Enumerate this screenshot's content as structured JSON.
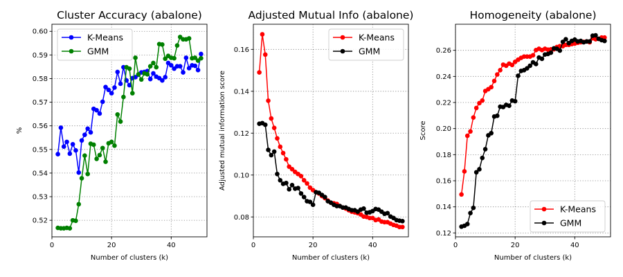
{
  "chart_data": [
    {
      "type": "line",
      "title": "Cluster Accuracy (abalone)",
      "xlabel": "Number of clusters (k)",
      "ylabel": "%",
      "xlim": [
        0,
        52
      ],
      "ylim": [
        0.513,
        0.603
      ],
      "xticks": [
        0,
        20,
        40
      ],
      "yticks": [
        0.52,
        0.53,
        0.54,
        0.55,
        0.56,
        0.57,
        0.58,
        0.59,
        0.6
      ],
      "ytick_labels": [
        "0.52",
        "0.53",
        "0.54",
        "0.55",
        "0.56",
        "0.57",
        "0.58",
        "0.59",
        "0.60"
      ],
      "grid": true,
      "legend_position": "upper-left",
      "x": [
        2,
        3,
        4,
        5,
        6,
        7,
        8,
        9,
        10,
        11,
        12,
        13,
        14,
        15,
        16,
        17,
        18,
        19,
        20,
        21,
        22,
        23,
        24,
        25,
        26,
        27,
        28,
        29,
        30,
        31,
        32,
        33,
        34,
        35,
        36,
        37,
        38,
        39,
        40,
        41,
        42,
        43,
        44,
        45,
        46,
        47,
        48,
        49,
        50
      ],
      "series": [
        {
          "name": "K-Means",
          "color": "#0000ff",
          "values": [
            0.548,
            0.5592,
            0.5512,
            0.5532,
            0.5482,
            0.5522,
            0.5496,
            0.5402,
            0.5538,
            0.5562,
            0.5588,
            0.5572,
            0.5672,
            0.5666,
            0.5652,
            0.5702,
            0.5764,
            0.5752,
            0.5738,
            0.5762,
            0.5828,
            0.5778,
            0.5848,
            0.5792,
            0.5772,
            0.5802,
            0.5806,
            0.5816,
            0.5826,
            0.5828,
            0.5832,
            0.5798,
            0.5822,
            0.5808,
            0.5802,
            0.5792,
            0.5806,
            0.5866,
            0.5856,
            0.5842,
            0.5852,
            0.5852,
            0.5826,
            0.5888,
            0.5844,
            0.5856,
            0.5854,
            0.5836,
            0.5904
          ]
        },
        {
          "name": "GMM",
          "color": "#008000",
          "values": [
            0.5168,
            0.5166,
            0.5166,
            0.5168,
            0.5166,
            0.52,
            0.5198,
            0.5268,
            0.5378,
            0.5474,
            0.5396,
            0.5524,
            0.552,
            0.546,
            0.5476,
            0.5506,
            0.5448,
            0.5526,
            0.5532,
            0.5516,
            0.5648,
            0.5618,
            0.5722,
            0.5848,
            0.5842,
            0.5738,
            0.5888,
            0.5818,
            0.5796,
            0.5822,
            0.5818,
            0.5852,
            0.5866,
            0.5848,
            0.5946,
            0.5944,
            0.5884,
            0.5896,
            0.5888,
            0.5886,
            0.594,
            0.5976,
            0.5966,
            0.5966,
            0.597,
            0.5886,
            0.5888,
            0.5876,
            0.5886
          ]
        }
      ]
    },
    {
      "type": "line",
      "title": "Adjusted Mutual Info (abalone)",
      "xlabel": "Number of clusters (k)",
      "ylabel": "Adjusted mutual information score",
      "xlim": [
        0,
        52
      ],
      "ylim": [
        0.0705,
        0.172
      ],
      "xticks": [
        0,
        20,
        40
      ],
      "yticks": [
        0.08,
        0.1,
        0.12,
        0.14,
        0.16
      ],
      "ytick_labels": [
        "0.08",
        "0.10",
        "0.12",
        "0.14",
        "0.16"
      ],
      "grid": true,
      "legend_position": "upper-right",
      "x": [
        2,
        3,
        4,
        5,
        6,
        7,
        8,
        9,
        10,
        11,
        12,
        13,
        14,
        15,
        16,
        17,
        18,
        19,
        20,
        21,
        22,
        23,
        24,
        25,
        26,
        27,
        28,
        29,
        30,
        31,
        32,
        33,
        34,
        35,
        36,
        37,
        38,
        39,
        40,
        41,
        42,
        43,
        44,
        45,
        46,
        47,
        48,
        49,
        50
      ],
      "series": [
        {
          "name": "K-Means",
          "color": "#ff0000",
          "values": [
            0.149,
            0.1672,
            0.1575,
            0.1355,
            0.127,
            0.1225,
            0.1175,
            0.1135,
            0.1105,
            0.1075,
            0.104,
            0.1028,
            0.1015,
            0.1005,
            0.0995,
            0.0975,
            0.096,
            0.094,
            0.0928,
            0.0918,
            0.0912,
            0.09,
            0.089,
            0.0878,
            0.0868,
            0.0865,
            0.0862,
            0.0852,
            0.0845,
            0.084,
            0.0832,
            0.0825,
            0.0822,
            0.0818,
            0.0812,
            0.0802,
            0.08,
            0.0795,
            0.0795,
            0.0785,
            0.0788,
            0.0778,
            0.0775,
            0.0775,
            0.0768,
            0.0762,
            0.0758,
            0.0752,
            0.0752
          ]
        },
        {
          "name": "GMM",
          "color": "#000000",
          "values": [
            0.1245,
            0.1248,
            0.124,
            0.112,
            0.1095,
            0.1112,
            0.1005,
            0.0975,
            0.0958,
            0.0962,
            0.0932,
            0.0952,
            0.0935,
            0.0938,
            0.0912,
            0.0895,
            0.0875,
            0.0872,
            0.0858,
            0.0918,
            0.0915,
            0.0905,
            0.0895,
            0.0875,
            0.0868,
            0.0858,
            0.0852,
            0.0852,
            0.0845,
            0.0845,
            0.0838,
            0.0832,
            0.0832,
            0.0825,
            0.0835,
            0.084,
            0.082,
            0.0822,
            0.0828,
            0.0838,
            0.0835,
            0.0825,
            0.0815,
            0.0818,
            0.0802,
            0.0795,
            0.0785,
            0.0782,
            0.078
          ]
        }
      ]
    },
    {
      "type": "line",
      "title": "Homogeneity (abalone)",
      "xlabel": "Number of clusters (k)",
      "ylabel": "Score",
      "xlim": [
        0,
        52
      ],
      "ylim": [
        0.117,
        0.28
      ],
      "xticks": [
        0,
        20,
        40
      ],
      "yticks": [
        0.12,
        0.14,
        0.16,
        0.18,
        0.2,
        0.22,
        0.24,
        0.26
      ],
      "ytick_labels": [
        "0.12",
        "0.14",
        "0.16",
        "0.18",
        "0.20",
        "0.22",
        "0.24",
        "0.26"
      ],
      "grid": true,
      "legend_position": "lower-right",
      "x": [
        2,
        3,
        4,
        5,
        6,
        7,
        8,
        9,
        10,
        11,
        12,
        13,
        14,
        15,
        16,
        17,
        18,
        19,
        20,
        21,
        22,
        23,
        24,
        25,
        26,
        27,
        28,
        29,
        30,
        31,
        32,
        33,
        34,
        35,
        36,
        37,
        38,
        39,
        40,
        41,
        42,
        43,
        44,
        45,
        46,
        47,
        48,
        49,
        50
      ],
      "series": [
        {
          "name": "K-Means",
          "color": "#ff0000",
          "values": [
            0.1495,
            0.1672,
            0.1945,
            0.1978,
            0.2085,
            0.2158,
            0.2195,
            0.2215,
            0.2288,
            0.2302,
            0.2318,
            0.2365,
            0.2415,
            0.2448,
            0.249,
            0.2482,
            0.2498,
            0.2488,
            0.2512,
            0.2528,
            0.2542,
            0.2552,
            0.2552,
            0.2552,
            0.2562,
            0.2602,
            0.2612,
            0.2602,
            0.2612,
            0.2605,
            0.2608,
            0.2608,
            0.2625,
            0.2632,
            0.2632,
            0.2642,
            0.2642,
            0.2648,
            0.2652,
            0.2658,
            0.2662,
            0.2665,
            0.2668,
            0.2662,
            0.2692,
            0.2685,
            0.2688,
            0.2698,
            0.2698
          ]
        },
        {
          "name": "GMM",
          "color": "#000000",
          "values": [
            0.1248,
            0.1255,
            0.1268,
            0.1352,
            0.1392,
            0.1665,
            0.1688,
            0.1775,
            0.1842,
            0.1948,
            0.1965,
            0.2092,
            0.2098,
            0.2168,
            0.2165,
            0.2182,
            0.2175,
            0.2215,
            0.221,
            0.2405,
            0.2442,
            0.2448,
            0.2462,
            0.2482,
            0.2508,
            0.2495,
            0.2545,
            0.2535,
            0.2568,
            0.2572,
            0.2582,
            0.2615,
            0.2612,
            0.2598,
            0.2665,
            0.2685,
            0.2655,
            0.2672,
            0.2682,
            0.2668,
            0.2672,
            0.2662,
            0.2668,
            0.2668,
            0.2712,
            0.2715,
            0.2688,
            0.2678,
            0.2672
          ]
        }
      ]
    }
  ]
}
